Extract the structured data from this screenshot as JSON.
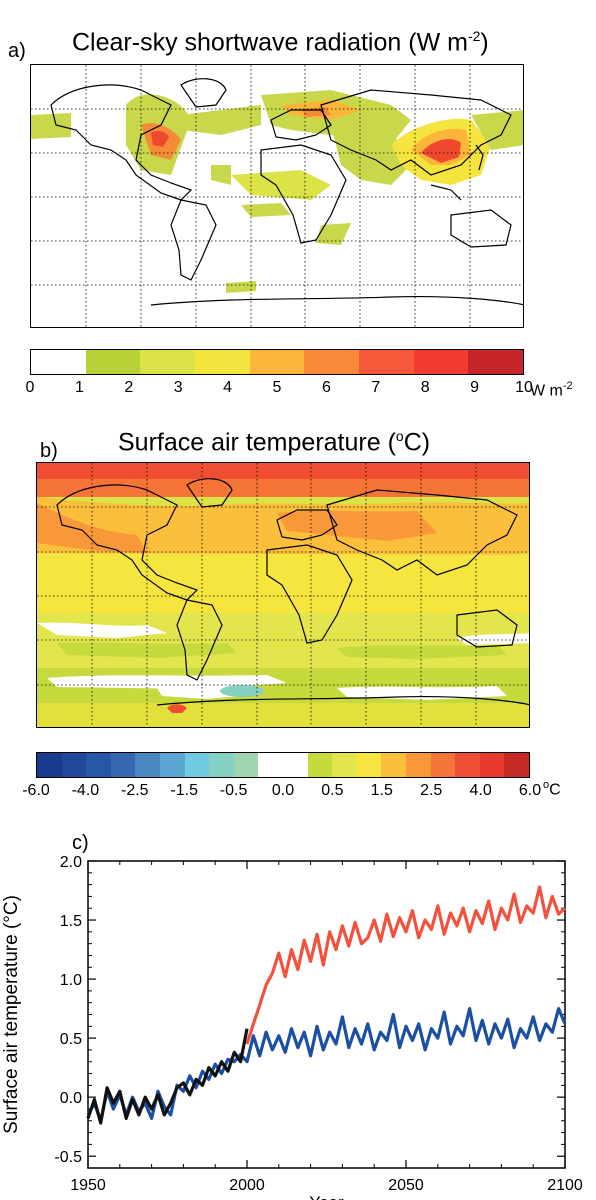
{
  "panel_a": {
    "letter": "a)",
    "title": "Clear-sky shortwave radiation (W m",
    "title_sup": "-2",
    "title_close": ")",
    "colorbar": {
      "colors": [
        "#ffffff",
        "#b9d136",
        "#dbe347",
        "#f5e43e",
        "#fbb63a",
        "#f98a37",
        "#f5593a",
        "#f13b31",
        "#c6262a"
      ],
      "tick_labels": [
        "0",
        "1",
        "2",
        "3",
        "4",
        "5",
        "6",
        "7",
        "8",
        "9",
        "10"
      ],
      "unit": "W m",
      "unit_sup": "-2"
    }
  },
  "panel_b": {
    "letter": "b)",
    "title": "Surface air temperature (",
    "title_sup": "o",
    "title_close": "C)",
    "colorbar": {
      "colors": [
        "#1b3b8f",
        "#22489c",
        "#2957a7",
        "#3667b1",
        "#4a86bf",
        "#5ba6d2",
        "#6fcbe1",
        "#87d0c4",
        "#a0d4ae",
        "#ffffff",
        "#ffffff",
        "#c6da3d",
        "#e3e54d",
        "#f6e43f",
        "#fbbf3c",
        "#f99838",
        "#f57437",
        "#f04e33",
        "#e63a2c",
        "#c52a26"
      ],
      "tick_labels": [
        "-6.0",
        "-4.0",
        "-2.5",
        "-1.5",
        "-0.5",
        "0.0",
        "0.5",
        "1.5",
        "2.5",
        "4.0",
        "6.0"
      ],
      "unit_sup": "o",
      "unit": "C"
    }
  },
  "panel_c": {
    "letter": "c)"
  },
  "chart_data": {
    "type": "line",
    "xlabel": "Year",
    "ylabel": "Surface air temperature (°C)",
    "xlim": [
      1950,
      2100
    ],
    "ylim": [
      -0.6,
      2.0
    ],
    "x_ticks": [
      1950,
      2000,
      2050,
      2100
    ],
    "y_ticks": [
      -0.5,
      0.0,
      0.5,
      1.0,
      1.5,
      2.0
    ],
    "x_tick_labels": [
      "1950",
      "2000",
      "2050",
      "2100"
    ],
    "y_tick_labels": [
      "-0.5",
      "0.0",
      "0.5",
      "1.0",
      "1.5",
      "2.0"
    ],
    "series": [
      {
        "color": "#f4513d",
        "points": [
          [
            2000,
            0.45
          ],
          [
            2002,
            0.62
          ],
          [
            2004,
            0.78
          ],
          [
            2006,
            0.95
          ],
          [
            2008,
            1.05
          ],
          [
            2010,
            1.22
          ],
          [
            2012,
            1.02
          ],
          [
            2014,
            1.25
          ],
          [
            2016,
            1.08
          ],
          [
            2018,
            1.33
          ],
          [
            2020,
            1.15
          ],
          [
            2022,
            1.38
          ],
          [
            2024,
            1.12
          ],
          [
            2026,
            1.4
          ],
          [
            2028,
            1.25
          ],
          [
            2030,
            1.45
          ],
          [
            2032,
            1.28
          ],
          [
            2034,
            1.48
          ],
          [
            2036,
            1.3
          ],
          [
            2038,
            1.35
          ],
          [
            2040,
            1.5
          ],
          [
            2042,
            1.32
          ],
          [
            2044,
            1.55
          ],
          [
            2046,
            1.36
          ],
          [
            2048,
            1.52
          ],
          [
            2050,
            1.4
          ],
          [
            2052,
            1.58
          ],
          [
            2054,
            1.35
          ],
          [
            2056,
            1.5
          ],
          [
            2058,
            1.42
          ],
          [
            2060,
            1.62
          ],
          [
            2062,
            1.38
          ],
          [
            2064,
            1.56
          ],
          [
            2066,
            1.45
          ],
          [
            2068,
            1.6
          ],
          [
            2070,
            1.4
          ],
          [
            2072,
            1.58
          ],
          [
            2074,
            1.47
          ],
          [
            2076,
            1.66
          ],
          [
            2078,
            1.42
          ],
          [
            2080,
            1.6
          ],
          [
            2082,
            1.5
          ],
          [
            2084,
            1.72
          ],
          [
            2086,
            1.48
          ],
          [
            2088,
            1.62
          ],
          [
            2090,
            1.56
          ],
          [
            2092,
            1.78
          ],
          [
            2094,
            1.52
          ],
          [
            2096,
            1.7
          ],
          [
            2098,
            1.55
          ],
          [
            2100,
            1.6
          ]
        ]
      },
      {
        "color": "#1a4fa3",
        "points": [
          [
            1950,
            -0.15
          ],
          [
            1952,
            -0.05
          ],
          [
            1954,
            -0.2
          ],
          [
            1956,
            0.05
          ],
          [
            1958,
            -0.1
          ],
          [
            1960,
            0.02
          ],
          [
            1962,
            -0.15
          ],
          [
            1964,
            0.0
          ],
          [
            1966,
            -0.12
          ],
          [
            1968,
            -0.05
          ],
          [
            1970,
            -0.18
          ],
          [
            1972,
            0.05
          ],
          [
            1974,
            -0.08
          ],
          [
            1976,
            -0.15
          ],
          [
            1978,
            0.1
          ],
          [
            1980,
            0.05
          ],
          [
            1982,
            0.18
          ],
          [
            1984,
            0.08
          ],
          [
            1986,
            0.22
          ],
          [
            1988,
            0.15
          ],
          [
            1990,
            0.28
          ],
          [
            1992,
            0.2
          ],
          [
            1994,
            0.32
          ],
          [
            1996,
            0.3
          ],
          [
            1998,
            0.36
          ],
          [
            2000,
            0.3
          ],
          [
            2002,
            0.52
          ],
          [
            2004,
            0.35
          ],
          [
            2006,
            0.55
          ],
          [
            2008,
            0.4
          ],
          [
            2010,
            0.52
          ],
          [
            2012,
            0.38
          ],
          [
            2014,
            0.58
          ],
          [
            2016,
            0.42
          ],
          [
            2018,
            0.55
          ],
          [
            2020,
            0.35
          ],
          [
            2022,
            0.6
          ],
          [
            2024,
            0.4
          ],
          [
            2026,
            0.55
          ],
          [
            2028,
            0.45
          ],
          [
            2030,
            0.68
          ],
          [
            2032,
            0.42
          ],
          [
            2034,
            0.58
          ],
          [
            2036,
            0.45
          ],
          [
            2038,
            0.62
          ],
          [
            2040,
            0.4
          ],
          [
            2042,
            0.55
          ],
          [
            2044,
            0.48
          ],
          [
            2046,
            0.7
          ],
          [
            2048,
            0.42
          ],
          [
            2050,
            0.6
          ],
          [
            2052,
            0.48
          ],
          [
            2054,
            0.62
          ],
          [
            2056,
            0.4
          ],
          [
            2058,
            0.58
          ],
          [
            2060,
            0.5
          ],
          [
            2062,
            0.72
          ],
          [
            2064,
            0.45
          ],
          [
            2066,
            0.6
          ],
          [
            2068,
            0.52
          ],
          [
            2070,
            0.75
          ],
          [
            2072,
            0.48
          ],
          [
            2074,
            0.65
          ],
          [
            2076,
            0.45
          ],
          [
            2078,
            0.62
          ],
          [
            2080,
            0.5
          ],
          [
            2082,
            0.66
          ],
          [
            2084,
            0.42
          ],
          [
            2086,
            0.58
          ],
          [
            2088,
            0.5
          ],
          [
            2090,
            0.68
          ],
          [
            2092,
            0.48
          ],
          [
            2094,
            0.62
          ],
          [
            2096,
            0.55
          ],
          [
            2098,
            0.75
          ],
          [
            2100,
            0.62
          ]
        ]
      },
      {
        "color": "#111111",
        "points": [
          [
            1950,
            -0.18
          ],
          [
            1952,
            -0.02
          ],
          [
            1954,
            -0.22
          ],
          [
            1956,
            0.08
          ],
          [
            1958,
            -0.05
          ],
          [
            1960,
            0.05
          ],
          [
            1962,
            -0.18
          ],
          [
            1964,
            -0.02
          ],
          [
            1966,
            -0.15
          ],
          [
            1968,
            0.0
          ],
          [
            1970,
            -0.1
          ],
          [
            1972,
            0.02
          ],
          [
            1974,
            -0.15
          ],
          [
            1976,
            -0.05
          ],
          [
            1978,
            0.08
          ],
          [
            1980,
            0.12
          ],
          [
            1982,
            0.02
          ],
          [
            1984,
            0.15
          ],
          [
            1986,
            0.1
          ],
          [
            1988,
            0.25
          ],
          [
            1990,
            0.18
          ],
          [
            1992,
            0.3
          ],
          [
            1994,
            0.22
          ],
          [
            1996,
            0.38
          ],
          [
            1998,
            0.3
          ],
          [
            2000,
            0.58
          ]
        ]
      }
    ]
  }
}
